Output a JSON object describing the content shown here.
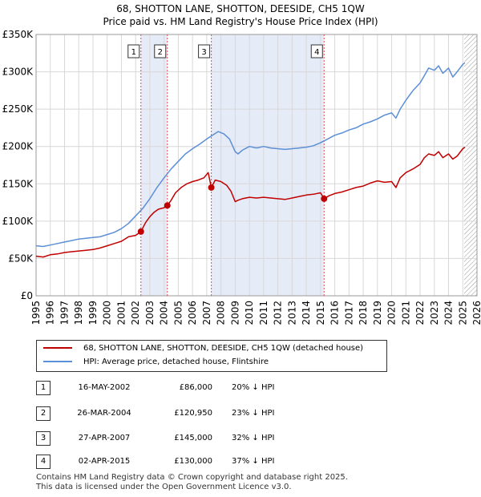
{
  "title": "68, SHOTTON LANE, SHOTTON, DEESIDE, CH5 1QW",
  "subtitle": "Price paid vs. HM Land Registry's House Price Index (HPI)",
  "colors": {
    "property": "#c00000",
    "hpi": "#5b8fd6",
    "shade": "#e6ebf8",
    "marker_line": "#e05050"
  },
  "chart_data": {
    "type": "line",
    "xlim": [
      1995,
      2026
    ],
    "ylim": [
      0,
      350000
    ],
    "yticks": [
      0,
      50000,
      100000,
      150000,
      200000,
      250000,
      300000,
      350000
    ],
    "ytick_labels": [
      "£0",
      "£50K",
      "£100K",
      "£150K",
      "£200K",
      "£250K",
      "£300K",
      "£350K"
    ],
    "xticks": [
      1995,
      1996,
      1997,
      1998,
      1999,
      2000,
      2001,
      2002,
      2003,
      2004,
      2005,
      2006,
      2007,
      2008,
      2009,
      2010,
      2011,
      2012,
      2013,
      2014,
      2015,
      2016,
      2017,
      2018,
      2019,
      2020,
      2021,
      2022,
      2023,
      2024,
      2025,
      2026
    ],
    "xtick_labels": [
      "1995",
      "1996",
      "1997",
      "1998",
      "1999",
      "2000",
      "2001",
      "2002",
      "2003",
      "2004",
      "2005",
      "2006",
      "2007",
      "2008",
      "2009",
      "2010",
      "2011",
      "2012",
      "2013",
      "2014",
      "2015",
      "2016",
      "2017",
      "2018",
      "2019",
      "2020",
      "2021",
      "2022",
      "2023",
      "2024",
      "2025",
      "2026"
    ],
    "shaded_ranges": [
      [
        2002.37,
        2004.23
      ],
      [
        2007.32,
        2015.25
      ]
    ],
    "hatched_from": 2025.1,
    "series": [
      {
        "name": "68, SHOTTON LANE, SHOTTON, DEESIDE, CH5 1QW (detached house)",
        "x": [
          1995.0,
          1995.5,
          1996.0,
          1996.5,
          1997.0,
          1997.5,
          1998.0,
          1998.5,
          1999.0,
          1999.5,
          2000.0,
          2000.5,
          2001.0,
          2001.5,
          2002.0,
          2002.37,
          2002.7,
          2003.0,
          2003.3,
          2003.6,
          2004.0,
          2004.23,
          2004.5,
          2004.8,
          2005.2,
          2005.6,
          2006.0,
          2006.4,
          2006.8,
          2007.1,
          2007.32,
          2007.6,
          2008.0,
          2008.4,
          2008.7,
          2009.0,
          2009.2,
          2009.5,
          2010.0,
          2010.5,
          2011.0,
          2011.5,
          2012.0,
          2012.5,
          2013.0,
          2013.5,
          2014.0,
          2014.5,
          2015.0,
          2015.25,
          2015.6,
          2016.0,
          2016.5,
          2017.0,
          2017.5,
          2018.0,
          2018.5,
          2019.0,
          2019.5,
          2020.0,
          2020.3,
          2020.6,
          2021.0,
          2021.5,
          2022.0,
          2022.3,
          2022.6,
          2023.0,
          2023.3,
          2023.6,
          2024.0,
          2024.3,
          2024.6,
          2025.0,
          2025.15
        ],
        "y": [
          53000,
          52000,
          55000,
          56000,
          58000,
          59000,
          60000,
          61000,
          62000,
          64000,
          67000,
          70000,
          73000,
          79000,
          81000,
          86000,
          98000,
          106000,
          112000,
          116000,
          118000,
          120950,
          128000,
          138000,
          145000,
          150000,
          153000,
          155000,
          158000,
          165000,
          145000,
          155000,
          153000,
          148000,
          140000,
          126000,
          128000,
          130000,
          132000,
          131000,
          132000,
          131000,
          130000,
          129000,
          131000,
          133000,
          135000,
          136000,
          138000,
          130000,
          134000,
          137000,
          139000,
          142000,
          145000,
          147000,
          151000,
          154000,
          152000,
          153000,
          145000,
          158000,
          165000,
          170000,
          176000,
          185000,
          190000,
          188000,
          193000,
          185000,
          190000,
          183000,
          187000,
          197000,
          199000
        ]
      },
      {
        "name": "HPI: Average price, detached house, Flintshire",
        "x": [
          1995.0,
          1995.5,
          1996.0,
          1996.5,
          1997.0,
          1997.5,
          1998.0,
          1998.5,
          1999.0,
          1999.5,
          2000.0,
          2000.5,
          2001.0,
          2001.5,
          2002.0,
          2002.5,
          2003.0,
          2003.5,
          2004.0,
          2004.5,
          2005.0,
          2005.5,
          2006.0,
          2006.5,
          2007.0,
          2007.4,
          2007.8,
          2008.2,
          2008.6,
          2009.0,
          2009.2,
          2009.5,
          2010.0,
          2010.5,
          2011.0,
          2011.5,
          2012.0,
          2012.5,
          2013.0,
          2013.5,
          2014.0,
          2014.5,
          2015.0,
          2015.5,
          2016.0,
          2016.5,
          2017.0,
          2017.5,
          2018.0,
          2018.5,
          2019.0,
          2019.5,
          2020.0,
          2020.3,
          2020.6,
          2021.0,
          2021.5,
          2022.0,
          2022.3,
          2022.6,
          2023.0,
          2023.3,
          2023.6,
          2024.0,
          2024.3,
          2024.6,
          2025.0,
          2025.15
        ],
        "y": [
          67000,
          66000,
          68000,
          70000,
          72000,
          74000,
          76000,
          77000,
          78000,
          79000,
          82000,
          85000,
          90000,
          97000,
          107000,
          117000,
          130000,
          145000,
          158000,
          170000,
          180000,
          190000,
          197000,
          203000,
          210000,
          215000,
          220000,
          217000,
          210000,
          193000,
          190000,
          195000,
          200000,
          198000,
          200000,
          198000,
          197000,
          196000,
          197000,
          198000,
          199000,
          201000,
          205000,
          210000,
          215000,
          218000,
          222000,
          225000,
          230000,
          233000,
          237000,
          242000,
          245000,
          238000,
          250000,
          262000,
          275000,
          285000,
          295000,
          305000,
          302000,
          308000,
          298000,
          305000,
          293000,
          300000,
          310000,
          312000
        ]
      }
    ],
    "sales": [
      {
        "label": "1",
        "x": 2002.37,
        "y": 86000
      },
      {
        "label": "2",
        "x": 2004.23,
        "y": 120950
      },
      {
        "label": "3",
        "x": 2007.32,
        "y": 145000
      },
      {
        "label": "4",
        "x": 2015.25,
        "y": 130000
      }
    ]
  },
  "legend": [
    {
      "label": "68, SHOTTON LANE, SHOTTON, DEESIDE, CH5 1QW (detached house)"
    },
    {
      "label": "HPI: Average price, detached house, Flintshire"
    }
  ],
  "table": [
    {
      "num": "1",
      "date": "16-MAY-2002",
      "price": "£86,000",
      "hpi": "20% ↓ HPI"
    },
    {
      "num": "2",
      "date": "26-MAR-2004",
      "price": "£120,950",
      "hpi": "23% ↓ HPI"
    },
    {
      "num": "3",
      "date": "27-APR-2007",
      "price": "£145,000",
      "hpi": "32% ↓ HPI"
    },
    {
      "num": "4",
      "date": "02-APR-2015",
      "price": "£130,000",
      "hpi": "37% ↓ HPI"
    }
  ],
  "footer": {
    "line1": "Contains HM Land Registry data © Crown copyright and database right 2025.",
    "line2": "This data is licensed under the Open Government Licence v3.0."
  }
}
